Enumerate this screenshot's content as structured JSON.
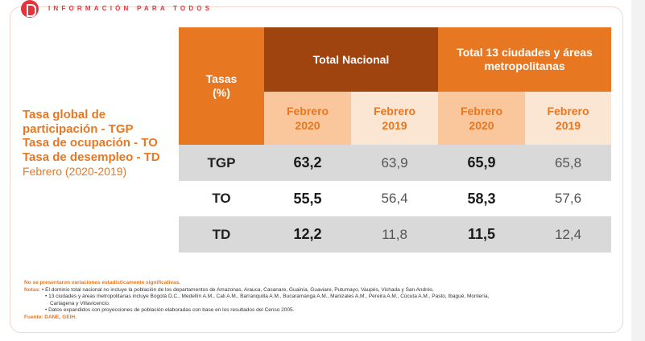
{
  "header": {
    "tagline": "INFORMACIÓN PARA TODOS"
  },
  "left_title": {
    "line1": "Tasa global de",
    "line2": "participación - TGP",
    "line3": "Tasa de ocupación - TO",
    "line4": "Tasa de desempleo - TD",
    "period": "Febrero (2020-2019)"
  },
  "table": {
    "col_tasas": [
      "Tasas",
      "(%)"
    ],
    "group_nacional": "Total Nacional",
    "group_ciudades": "Total 13 ciudades y áreas metropolitanas",
    "sub": [
      [
        "Febrero",
        "2020"
      ],
      [
        "Febrero",
        "2019"
      ],
      [
        "Febrero",
        "2020"
      ],
      [
        "Febrero",
        "2019"
      ]
    ],
    "rows": [
      {
        "label": "TGP",
        "values": [
          "63,2",
          "63,9",
          "65,9",
          "65,8"
        ]
      },
      {
        "label": "TO",
        "values": [
          "55,5",
          "56,4",
          "58,3",
          "57,6"
        ]
      },
      {
        "label": "TD",
        "values": [
          "12,2",
          "11,8",
          "11,5",
          "12,4"
        ]
      }
    ]
  },
  "notes": {
    "significance": "No se presentaron variaciones estadísticamente significativas.",
    "notas_label": "Notas:",
    "note1": "• El dominio total nacional no incluye la población de los departamentos de Amazonas, Arauca, Casanare, Guainía, Guaviare, Putumayo, Vaupés, Vichada y San Andrés.",
    "note2": "• 13 ciudades y áreas metropolitanas incluye Bogotá D.C., Medellín A.M., Cali A.M., Barranquilla A.M., Bucaramanga A.M., Manizales A.M., Pereira A.M., Cúcuta A.M., Pasto, Ibagué, Montería,",
    "note2b": "Cartagena y Villavicencio.",
    "note3": "• Datos expandidos con proyecciones de población elaboradas con base en los resultados del Censo 2005.",
    "fuente": "Fuente: DANE, GEIH."
  }
}
